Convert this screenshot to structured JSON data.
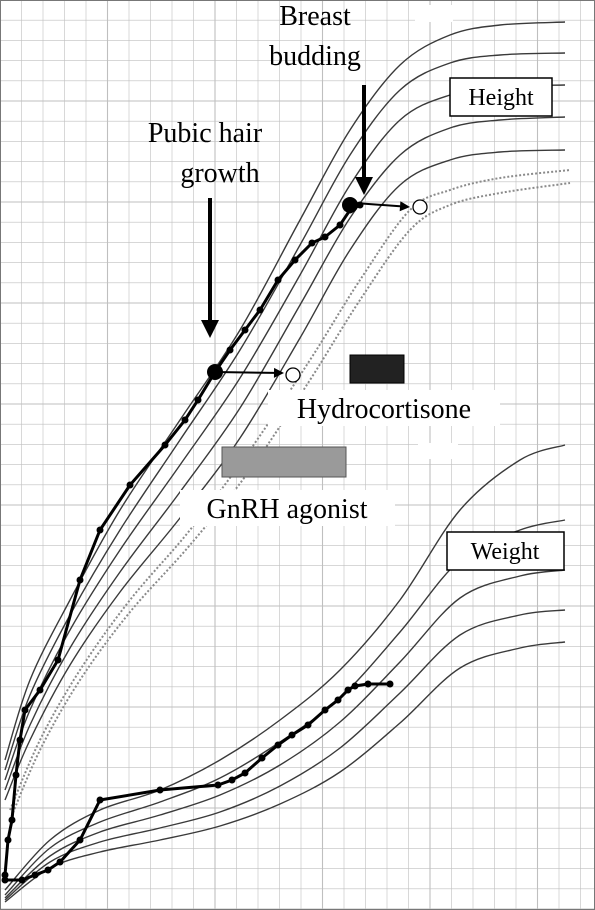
{
  "chart_data": {
    "type": "line",
    "title": "",
    "xlabel": "",
    "ylabel": "",
    "grid": true,
    "colors": {
      "grid": "#bfbfbf",
      "percentile": "#3a3a3a",
      "dotted": "#8a8a8a",
      "patient": "#000000",
      "gnrh_bar": "#9a9a9a",
      "hydro_bar": "#222222"
    },
    "annotations": {
      "breast_budding": [
        "Breast",
        "budding"
      ],
      "pubic_hair": [
        "Pubic hair",
        "growth"
      ],
      "height_box": "Height",
      "weight_box": "Weight",
      "hydrocortisone": "Hydrocortisone",
      "gnrh_agonist": "GnRH agonist"
    },
    "series": [
      {
        "group": "height-percentiles",
        "points": [
          [
            5,
            760
          ],
          [
            30,
            680
          ],
          [
            70,
            600
          ],
          [
            120,
            510
          ],
          [
            180,
            420
          ],
          [
            240,
            330
          ],
          [
            300,
            220
          ],
          [
            350,
            130
          ],
          [
            400,
            65
          ],
          [
            450,
            35
          ],
          [
            500,
            25
          ],
          [
            565,
            22
          ]
        ]
      },
      {
        "group": "height-percentiles",
        "points": [
          [
            5,
            770
          ],
          [
            30,
            695
          ],
          [
            70,
            615
          ],
          [
            120,
            530
          ],
          [
            180,
            440
          ],
          [
            240,
            350
          ],
          [
            300,
            245
          ],
          [
            350,
            155
          ],
          [
            400,
            90
          ],
          [
            450,
            63
          ],
          [
            500,
            55
          ],
          [
            565,
            53
          ]
        ]
      },
      {
        "group": "height-percentiles",
        "points": [
          [
            5,
            780
          ],
          [
            30,
            710
          ],
          [
            70,
            630
          ],
          [
            120,
            550
          ],
          [
            180,
            465
          ],
          [
            240,
            378
          ],
          [
            300,
            275
          ],
          [
            350,
            185
          ],
          [
            400,
            120
          ],
          [
            450,
            95
          ],
          [
            500,
            87
          ],
          [
            565,
            85
          ]
        ]
      },
      {
        "group": "height-percentiles",
        "points": [
          [
            5,
            790
          ],
          [
            30,
            725
          ],
          [
            70,
            648
          ],
          [
            120,
            572
          ],
          [
            180,
            492
          ],
          [
            240,
            408
          ],
          [
            300,
            305
          ],
          [
            350,
            218
          ],
          [
            400,
            155
          ],
          [
            450,
            128
          ],
          [
            500,
            120
          ],
          [
            565,
            117
          ]
        ]
      },
      {
        "group": "height-percentiles",
        "points": [
          [
            5,
            800
          ],
          [
            30,
            740
          ],
          [
            70,
            665
          ],
          [
            120,
            592
          ],
          [
            180,
            518
          ],
          [
            240,
            438
          ],
          [
            300,
            338
          ],
          [
            350,
            250
          ],
          [
            400,
            185
          ],
          [
            450,
            160
          ],
          [
            500,
            152
          ],
          [
            565,
            150
          ]
        ]
      },
      {
        "group": "height-dotted",
        "points": [
          [
            10,
            810
          ],
          [
            40,
            740
          ],
          [
            80,
            670
          ],
          [
            130,
            600
          ],
          [
            190,
            530
          ],
          [
            250,
            450
          ],
          [
            310,
            360
          ],
          [
            360,
            280
          ],
          [
            410,
            210
          ],
          [
            450,
            190
          ],
          [
            500,
            178
          ],
          [
            570,
            170
          ]
        ]
      },
      {
        "group": "height-dotted",
        "points": [
          [
            10,
            820
          ],
          [
            40,
            750
          ],
          [
            80,
            680
          ],
          [
            130,
            612
          ],
          [
            190,
            545
          ],
          [
            250,
            470
          ],
          [
            310,
            380
          ],
          [
            360,
            300
          ],
          [
            410,
            230
          ],
          [
            450,
            205
          ],
          [
            500,
            193
          ],
          [
            570,
            183
          ]
        ]
      },
      {
        "group": "weight-percentiles",
        "points": [
          [
            5,
            890
          ],
          [
            50,
            840
          ],
          [
            100,
            810
          ],
          [
            160,
            790
          ],
          [
            220,
            760
          ],
          [
            280,
            720
          ],
          [
            340,
            670
          ],
          [
            400,
            600
          ],
          [
            460,
            510
          ],
          [
            520,
            460
          ],
          [
            565,
            445
          ]
        ]
      },
      {
        "group": "weight-percentiles",
        "points": [
          [
            5,
            895
          ],
          [
            50,
            848
          ],
          [
            100,
            822
          ],
          [
            160,
            802
          ],
          [
            220,
            778
          ],
          [
            280,
            742
          ],
          [
            340,
            698
          ],
          [
            400,
            632
          ],
          [
            460,
            560
          ],
          [
            520,
            530
          ],
          [
            565,
            520
          ]
        ]
      },
      {
        "group": "weight-percentiles",
        "points": [
          [
            5,
            898
          ],
          [
            50,
            856
          ],
          [
            100,
            832
          ],
          [
            160,
            815
          ],
          [
            220,
            795
          ],
          [
            280,
            765
          ],
          [
            340,
            722
          ],
          [
            400,
            662
          ],
          [
            460,
            598
          ],
          [
            520,
            576
          ],
          [
            565,
            570
          ]
        ]
      },
      {
        "group": "weight-percentiles",
        "points": [
          [
            5,
            900
          ],
          [
            50,
            862
          ],
          [
            100,
            842
          ],
          [
            160,
            828
          ],
          [
            220,
            812
          ],
          [
            280,
            786
          ],
          [
            340,
            748
          ],
          [
            400,
            693
          ],
          [
            460,
            635
          ],
          [
            520,
            615
          ],
          [
            565,
            610
          ]
        ]
      },
      {
        "group": "weight-percentiles",
        "points": [
          [
            5,
            902
          ],
          [
            50,
            868
          ],
          [
            100,
            852
          ],
          [
            160,
            840
          ],
          [
            220,
            826
          ],
          [
            280,
            804
          ],
          [
            340,
            772
          ],
          [
            400,
            723
          ],
          [
            460,
            668
          ],
          [
            520,
            648
          ],
          [
            565,
            642
          ]
        ]
      },
      {
        "group": "height-patient",
        "points": [
          [
            5,
            875
          ],
          [
            8,
            840
          ],
          [
            12,
            820
          ],
          [
            16,
            775
          ],
          [
            20,
            740
          ],
          [
            25,
            710
          ],
          [
            40,
            690
          ],
          [
            58,
            660
          ],
          [
            80,
            580
          ],
          [
            100,
            530
          ],
          [
            130,
            485
          ],
          [
            165,
            445
          ],
          [
            185,
            420
          ],
          [
            198,
            400
          ],
          [
            215,
            372
          ],
          [
            230,
            350
          ],
          [
            245,
            330
          ],
          [
            260,
            310
          ],
          [
            278,
            280
          ],
          [
            295,
            260
          ],
          [
            312,
            243
          ],
          [
            325,
            237
          ],
          [
            340,
            225
          ],
          [
            350,
            210
          ],
          [
            360,
            205
          ]
        ]
      },
      {
        "group": "weight-patient",
        "points": [
          [
            5,
            880
          ],
          [
            22,
            880
          ],
          [
            35,
            875
          ],
          [
            48,
            870
          ],
          [
            60,
            862
          ],
          [
            80,
            840
          ],
          [
            100,
            800
          ],
          [
            160,
            790
          ],
          [
            218,
            785
          ],
          [
            232,
            780
          ],
          [
            245,
            773
          ],
          [
            262,
            758
          ],
          [
            278,
            745
          ],
          [
            292,
            735
          ],
          [
            308,
            725
          ],
          [
            325,
            710
          ],
          [
            338,
            700
          ],
          [
            348,
            690
          ],
          [
            355,
            686
          ],
          [
            368,
            684
          ],
          [
            390,
            684
          ]
        ]
      }
    ],
    "markers": {
      "filled": [
        [
          215,
          372
        ],
        [
          350,
          205
        ]
      ],
      "open": [
        [
          293,
          375
        ],
        [
          420,
          207
        ]
      ]
    }
  }
}
